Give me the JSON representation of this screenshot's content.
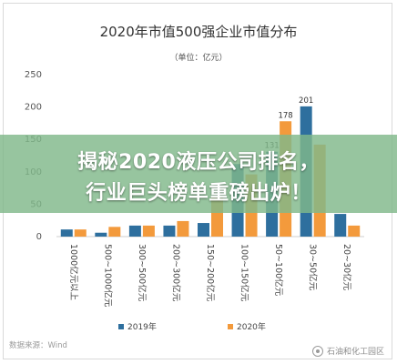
{
  "chart_data": {
    "type": "bar",
    "title": "2020年市值500强企业市值分布",
    "subtitle": "（单位：亿元）",
    "categories": [
      "1000亿元以上",
      "500~1000亿元",
      "300~500亿元",
      "200~300亿元",
      "150~200亿元",
      "100~150亿元",
      "50~100亿元",
      "30~50亿元",
      "20~30亿元"
    ],
    "series": [
      {
        "name": "2019年",
        "color": "#2e6f9e",
        "values": [
          11,
          6,
          17,
          17,
          21,
          112,
          131,
          201,
          35
        ]
      },
      {
        "name": "2020年",
        "color": "#f39a3c",
        "values": [
          11,
          15,
          17,
          24,
          60,
          96,
          178,
          142,
          17
        ]
      }
    ],
    "data_labels": {
      "series_2019": [
        "",
        "",
        "",
        "",
        "",
        "",
        "131",
        "201",
        ""
      ],
      "series_2020": [
        "",
        "",
        "",
        "",
        "",
        "",
        "178",
        "",
        ""
      ]
    },
    "yticks": [
      0,
      50,
      100,
      150,
      200,
      250
    ],
    "ylim": [
      0,
      250
    ],
    "grid": false,
    "legend_position": "bottom"
  },
  "overlay": {
    "line1": "揭秘2020液压公司排名，",
    "line2": "行业巨头榜单重磅出炉！"
  },
  "footer": {
    "source": "数据来源：Wind",
    "watermark": "石油和化工园区"
  }
}
